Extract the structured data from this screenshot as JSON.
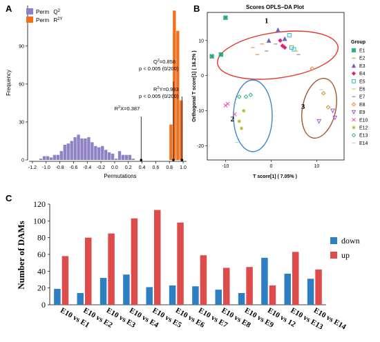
{
  "panels": {
    "A": "A",
    "B": "B",
    "C": "C"
  },
  "colors": {
    "perm_q2": "#8f82c4",
    "perm_r2y": "#f46f1b",
    "ellipse1": "#e8332c",
    "ellipse2": "#3a86c8",
    "ellipse3": "#a0542a",
    "down": "#2e7ec2",
    "up": "#de4b4b"
  },
  "chart_data": [
    {
      "type": "bar",
      "panel": "A",
      "xlabel": "Permutations",
      "ylabel": "Frequency",
      "xlim": [
        -1.25,
        1.05
      ],
      "ylim": [
        0,
        122
      ],
      "xticks": [
        "-1.2",
        "-1.0",
        "-0.8",
        "-0.6",
        "-0.4",
        "-0.2",
        "0.0",
        "0.2",
        "0.4",
        "0.6",
        "0.8",
        "1.0"
      ],
      "xtick_values": [
        -1.2,
        -1.0,
        -0.8,
        -0.6,
        -0.4,
        -0.2,
        0.0,
        0.2,
        0.4,
        0.6,
        0.8,
        1.0
      ],
      "yticks": [
        "0",
        "30",
        "60",
        "90"
      ],
      "ytick_values": [
        0,
        30,
        60,
        90
      ],
      "bin_width": 0.05,
      "legend": [
        {
          "label": "Perm",
          "sup": "Q",
          "supscript": "2"
        },
        {
          "label": "Perm",
          "sup": "R",
          "supscript": "2Y"
        }
      ],
      "series": [
        {
          "name": "Perm Q2",
          "bins": [
            -1.1,
            -1.05,
            -1.0,
            -0.95,
            -0.9,
            -0.85,
            -0.8,
            -0.75,
            -0.7,
            -0.65,
            -0.6,
            -0.55,
            -0.5,
            -0.45,
            -0.4,
            -0.35,
            -0.3,
            -0.25,
            -0.2,
            -0.15,
            -0.1,
            -0.05,
            0.0,
            0.05,
            0.1,
            0.15,
            0.2,
            0.25
          ],
          "values": [
            1,
            3,
            3,
            2,
            4,
            4,
            7,
            12,
            13,
            15,
            18,
            20,
            17,
            17,
            18,
            14,
            11,
            10,
            11,
            8,
            6,
            5,
            1,
            7,
            4,
            4,
            4,
            1
          ]
        },
        {
          "name": "Perm R2Y",
          "bins": [
            0.8,
            0.85,
            0.9,
            0.95
          ],
          "values": [
            28,
            118,
            102,
            47
          ]
        }
      ],
      "annotations": [
        {
          "text": "R",
          "sup": "2",
          "rest": "X=0.387",
          "x": 0.387
        },
        {
          "text": "Q",
          "sup": "2",
          "rest": "=0.858",
          "line2": "p < 0.005 (0/200)",
          "x": 0.858
        },
        {
          "text": "R",
          "sup": "2",
          "rest": "Y=0.983",
          "line2": "p < 0.005 (0/200)",
          "x": 0.983
        }
      ]
    },
    {
      "type": "scatter",
      "panel": "B",
      "title": "Scores OPLS−DA Plot",
      "xlabel": "T score[1] ( 7.05% )",
      "ylabel": "Orthogonal T score[1] ( 16.2% )",
      "xlim": [
        -14,
        16
      ],
      "ylim": [
        -24,
        18
      ],
      "xticks": [
        -10,
        0,
        10
      ],
      "yticks": [
        -20,
        -10,
        0,
        10
      ],
      "legend_title": "Group",
      "groups": [
        {
          "name": "E1",
          "marker": "sqx",
          "color": "#1aa37a",
          "points": [
            [
              -10,
              16.5
            ],
            [
              -13,
              5.5
            ],
            [
              -11,
              6
            ]
          ]
        },
        {
          "name": "E2",
          "marker": "dash",
          "color": "#e07b1e",
          "points": [
            [
              -4,
              8
            ],
            [
              -3,
              6
            ],
            [
              -2,
              9
            ]
          ]
        },
        {
          "name": "E3",
          "marker": "tri",
          "color": "#6b63c2",
          "points": [
            [
              1.5,
              13
            ],
            [
              -0.5,
              10
            ],
            [
              3,
              10.5
            ]
          ]
        },
        {
          "name": "E4",
          "marker": "diamond",
          "color": "#e0227d",
          "points": [
            [
              2,
              10
            ],
            [
              3,
              8
            ],
            [
              2.5,
              8.5
            ]
          ]
        },
        {
          "name": "E5",
          "marker": "square",
          "color": "#2fb7d5",
          "points": [
            [
              4,
              11.5
            ],
            [
              5,
              7.5
            ],
            [
              4.5,
              8
            ]
          ]
        },
        {
          "name": "E6",
          "marker": "dash",
          "color": "#d4aa00",
          "points": [
            [
              4.5,
              8.5
            ],
            [
              5.5,
              7
            ]
          ]
        },
        {
          "name": "E7",
          "marker": "dash",
          "color": "#777777",
          "points": [
            [
              -1,
              7
            ],
            [
              1,
              9
            ],
            [
              6,
              6
            ]
          ]
        },
        {
          "name": "E8",
          "marker": "diamond-open",
          "color": "#e08a2e",
          "points": [
            [
              9,
              2
            ],
            [
              11.5,
              -5
            ],
            [
              12.5,
              -9
            ]
          ]
        },
        {
          "name": "E9",
          "marker": "tri-down-open",
          "color": "#9b58c8",
          "points": [
            [
              13.5,
              -10
            ],
            [
              14,
              -12
            ],
            [
              10.5,
              -13
            ]
          ]
        },
        {
          "name": "E10",
          "marker": "x",
          "color": "#e84fb0",
          "points": [
            [
              -10,
              -8.5
            ],
            [
              -9.5,
              -8
            ],
            [
              -8,
              -11
            ]
          ]
        },
        {
          "name": "E12",
          "marker": "star",
          "color": "#b5b92e",
          "points": [
            [
              -7,
              -13
            ],
            [
              -6,
              -10
            ],
            [
              -6.5,
              -15
            ]
          ]
        },
        {
          "name": "E13",
          "marker": "diamond-open",
          "color": "#2db38a",
          "points": [
            [
              -7,
              -6
            ],
            [
              -5.5,
              -6
            ],
            [
              -4.5,
              -5.5
            ]
          ]
        },
        {
          "name": "E14",
          "marker": "dash",
          "color": "#8fd3e8",
          "points": [
            [
              -7.5,
              -19
            ],
            [
              -8,
              -8
            ],
            [
              11,
              -4
            ]
          ]
        }
      ],
      "labels": [
        {
          "text": "1",
          "x": -1,
          "y": 15
        },
        {
          "text": "2",
          "x": -8.5,
          "y": -13
        },
        {
          "text": "3",
          "x": 7,
          "y": -9.5
        }
      ]
    },
    {
      "type": "bar",
      "panel": "C",
      "ylabel": "Number of DAMs",
      "ylim": [
        0,
        120
      ],
      "yticks": [
        0,
        20,
        40,
        60,
        80,
        100,
        120
      ],
      "categories": [
        "E10 vs E1",
        "E10 vs E2",
        "E10 vs E3",
        "E10 vs E4",
        "E10 vs E5",
        "E10 vs E6",
        "E10 vs E7",
        "E10 vs E8",
        "E10 vs E9",
        "E10 vs 12",
        "E10 vs E13",
        "E10 vs E14"
      ],
      "series": [
        {
          "name": "down",
          "values": [
            19,
            14,
            32,
            36,
            21,
            23,
            22,
            18,
            14,
            56,
            37,
            31
          ]
        },
        {
          "name": "up",
          "values": [
            58,
            80,
            85,
            103,
            113,
            98,
            59,
            44,
            45,
            23,
            63,
            42
          ]
        }
      ],
      "legend": [
        "down",
        "up"
      ]
    }
  ]
}
